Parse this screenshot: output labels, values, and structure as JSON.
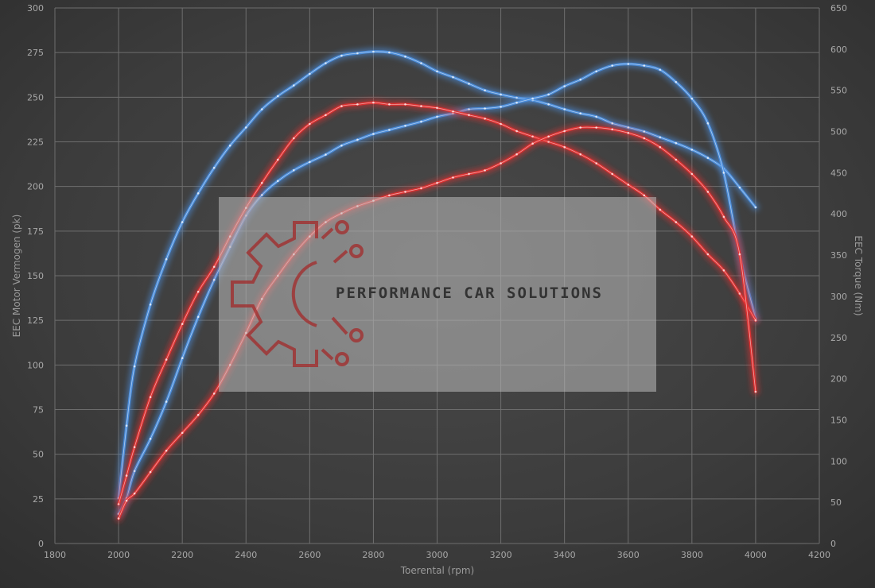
{
  "chart_data": {
    "type": "line",
    "xlabel": "Toerental (rpm)",
    "ylabel_left": "EEC Motor Vermogen (pk)",
    "ylabel_right": "EEC Torque (Nm)",
    "xlim": [
      1800,
      4200
    ],
    "xticks": [
      1800,
      2000,
      2200,
      2400,
      2600,
      2800,
      3000,
      3200,
      3400,
      3600,
      3800,
      4000,
      4200
    ],
    "ylim_left": [
      0,
      300
    ],
    "yticks_left": [
      0,
      25,
      50,
      75,
      100,
      125,
      150,
      175,
      200,
      225,
      250,
      275,
      300
    ],
    "ylim_right": [
      0,
      650
    ],
    "yticks_right": [
      0,
      50,
      100,
      150,
      200,
      250,
      300,
      350,
      400,
      450,
      500,
      550,
      600,
      650
    ],
    "grid": true,
    "series": [
      {
        "axis": "right",
        "color": "#4a90e2",
        "x": [
          2000,
          2025,
          2050,
          2100,
          2150,
          2200,
          2250,
          2300,
          2350,
          2400,
          2450,
          2500,
          2550,
          2600,
          2650,
          2700,
          2750,
          2800,
          2850,
          2900,
          2950,
          3000,
          3050,
          3100,
          3150,
          3200,
          3250,
          3300,
          3350,
          3400,
          3450,
          3500,
          3550,
          3600,
          3650,
          3700,
          3750,
          3800,
          3850,
          3900,
          3950,
          4000
        ],
        "values": [
          55,
          143,
          215,
          290,
          345,
          390,
          425,
          456,
          483,
          505,
          527,
          543,
          556,
          570,
          583,
          592,
          595,
          597,
          596,
          591,
          583,
          573,
          566,
          558,
          550,
          545,
          541,
          538,
          533,
          527,
          522,
          518,
          510,
          505,
          500,
          493,
          486,
          478,
          468,
          455,
          432,
          408
        ]
      },
      {
        "axis": "right",
        "color": "#4a90e2",
        "x": [
          2000,
          2025,
          2050,
          2100,
          2150,
          2200,
          2250,
          2300,
          2350,
          2400,
          2450,
          2500,
          2550,
          2600,
          2650,
          2700,
          2750,
          2800,
          2850,
          2900,
          2950,
          3000,
          3050,
          3100,
          3150,
          3200,
          3250,
          3300,
          3350,
          3400,
          3450,
          3500,
          3550,
          3600,
          3650,
          3700,
          3750,
          3800,
          3850,
          3900,
          3950,
          4000
        ],
        "values": [
          36,
          55,
          88,
          127,
          172,
          225,
          275,
          320,
          360,
          398,
          423,
          440,
          453,
          463,
          472,
          483,
          490,
          497,
          502,
          507,
          512,
          518,
          522,
          527,
          528,
          530,
          535,
          540,
          545,
          555,
          563,
          573,
          580,
          582,
          580,
          575,
          560,
          540,
          510,
          450,
          350,
          273
        ]
      },
      {
        "axis": "left",
        "color": "#e53030",
        "x": [
          2000,
          2025,
          2050,
          2100,
          2150,
          2200,
          2250,
          2300,
          2350,
          2400,
          2450,
          2500,
          2550,
          2600,
          2650,
          2700,
          2750,
          2800,
          2850,
          2900,
          2950,
          3000,
          3050,
          3100,
          3150,
          3200,
          3250,
          3300,
          3350,
          3400,
          3450,
          3500,
          3550,
          3600,
          3650,
          3700,
          3750,
          3800,
          3850,
          3900,
          3950,
          4000
        ],
        "values": [
          22,
          38,
          54,
          82,
          103,
          123,
          141,
          155,
          172,
          188,
          202,
          215,
          227,
          235,
          240,
          245,
          246,
          247,
          246,
          246,
          245,
          244,
          242,
          240,
          238,
          235,
          231,
          228,
          225,
          222,
          218,
          213,
          207,
          201,
          195,
          187,
          180,
          172,
          162,
          153,
          140,
          125
        ]
      },
      {
        "axis": "left",
        "color": "#e53030",
        "x": [
          2000,
          2025,
          2050,
          2100,
          2150,
          2200,
          2250,
          2300,
          2350,
          2400,
          2450,
          2500,
          2550,
          2600,
          2650,
          2700,
          2750,
          2800,
          2850,
          2900,
          2950,
          3000,
          3050,
          3100,
          3150,
          3200,
          3250,
          3300,
          3350,
          3400,
          3450,
          3500,
          3550,
          3600,
          3650,
          3700,
          3750,
          3800,
          3850,
          3900,
          3950,
          4000
        ],
        "values": [
          14,
          24,
          28,
          40,
          52,
          62,
          72,
          84,
          100,
          118,
          137,
          150,
          162,
          172,
          180,
          185,
          189,
          192,
          195,
          197,
          199,
          202,
          205,
          207,
          209,
          213,
          218,
          224,
          228,
          231,
          233,
          233,
          232,
          230,
          227,
          222,
          215,
          207,
          197,
          183,
          162,
          85
        ]
      }
    ]
  },
  "watermark": {
    "text": "PERFORMANCE CAR SOLUTIONS",
    "icon": "gear-circuit-icon"
  }
}
